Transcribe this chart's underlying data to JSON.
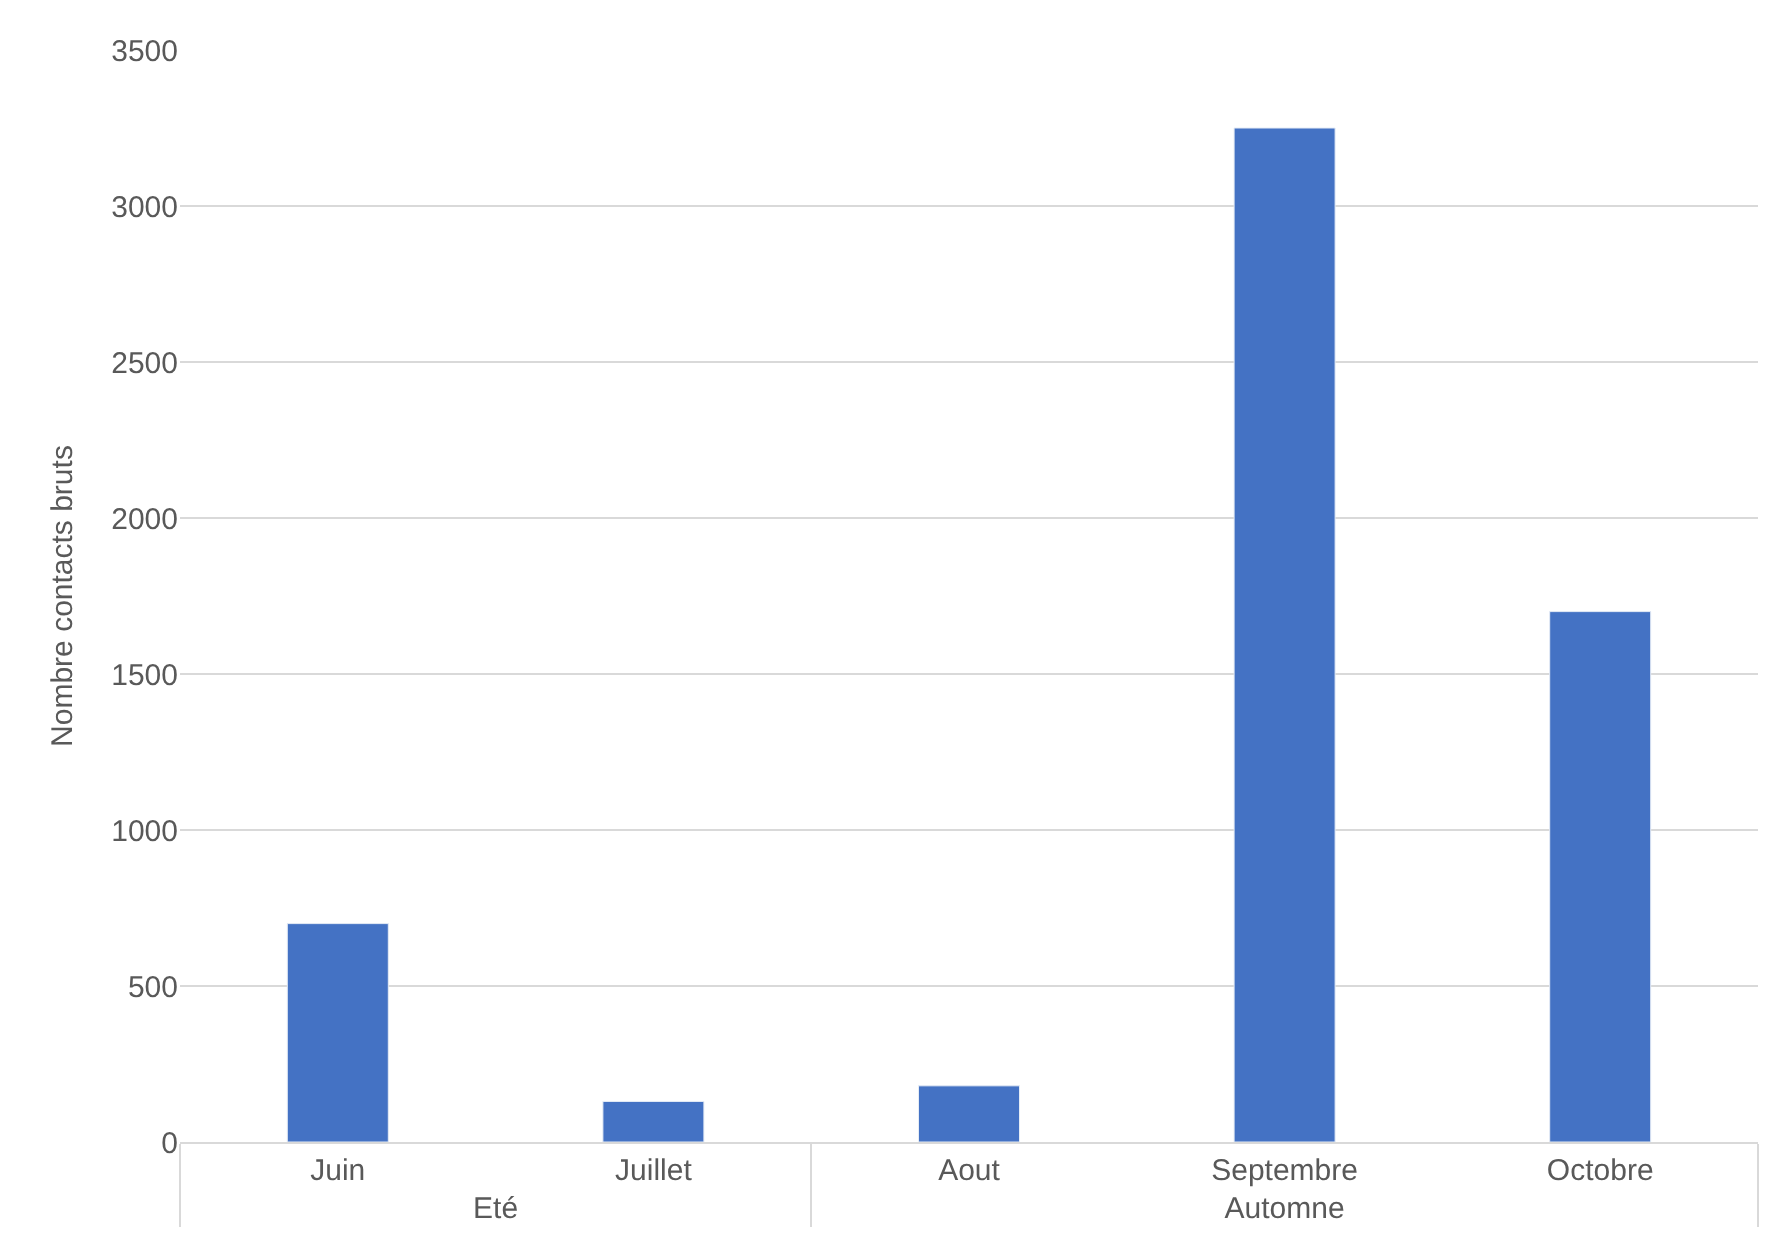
{
  "chart_data": {
    "type": "bar",
    "ylabel": "Nombre contacts bruts",
    "categories": [
      "Juin",
      "Juillet",
      "Aout",
      "Septembre",
      "Octobre"
    ],
    "values": [
      700,
      130,
      180,
      3250,
      1700
    ],
    "color": "#4472c4",
    "ylim": [
      0,
      3500
    ],
    "yticks": [
      0,
      500,
      1000,
      1500,
      2000,
      2500,
      3000,
      3500
    ],
    "grid": "y",
    "legend": false,
    "annotations": [
      "Eté",
      "Automne"
    ]
  }
}
